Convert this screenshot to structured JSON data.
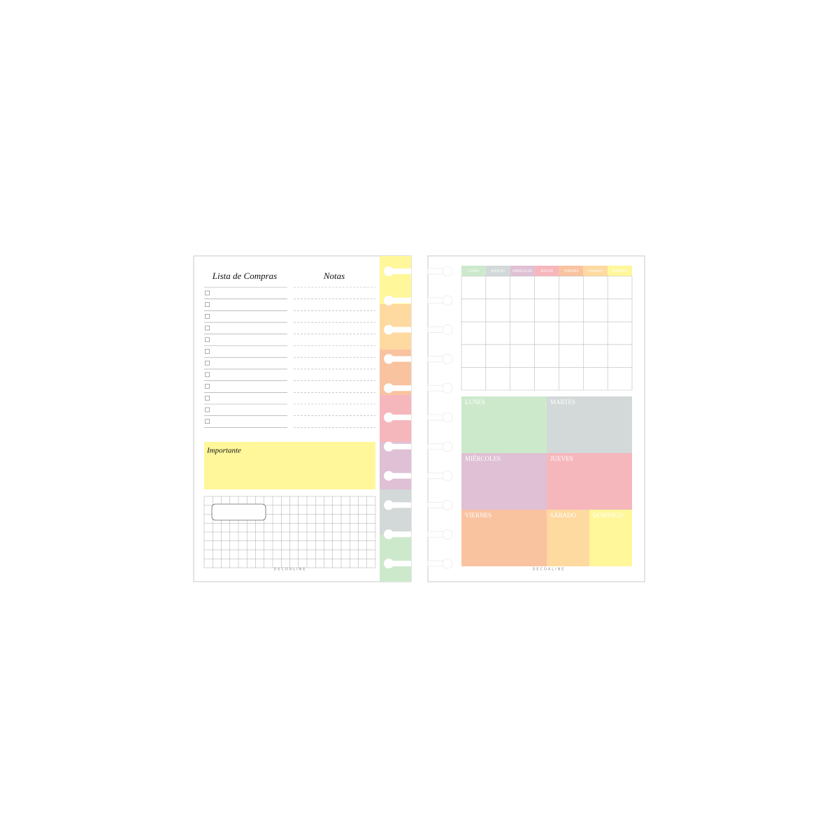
{
  "left": {
    "title": "Lista de Compras",
    "notes_title": "Notas",
    "important": "Importante",
    "footer": "DECOALINE"
  },
  "right": {
    "days_short": [
      "LUNES",
      "MARTES",
      "MIÉRCOLES",
      "JUEVES",
      "VIERNES",
      "SÁBADO",
      "DOMINGO"
    ],
    "days": [
      "LUNES",
      "MARTES",
      "MIÉRCOLES",
      "JUEVES",
      "VIERNES",
      "SÁBADO",
      "DOMINGO"
    ],
    "footer": "DECOALINE"
  }
}
